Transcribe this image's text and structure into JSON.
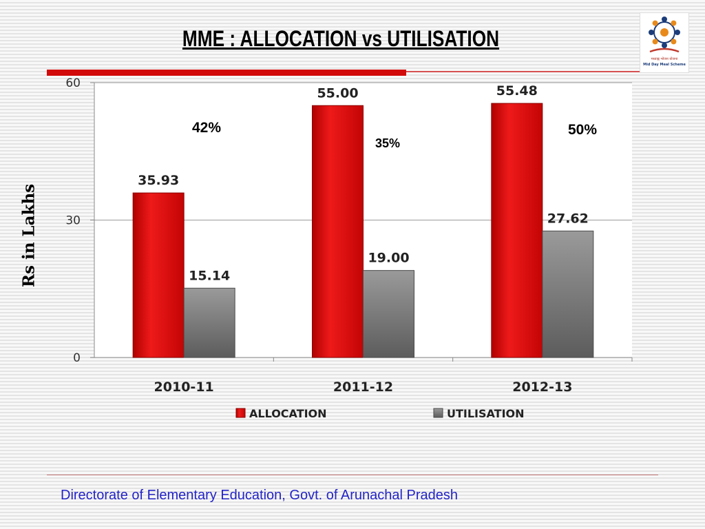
{
  "slide": {
    "title": "MME : ALLOCATION vs UTILISATION",
    "footer": "Directorate of Elementary Education, Govt. of Arunachal Pradesh",
    "logo": {
      "icon": "mid-day-meal-logo",
      "caption_hindi": "मध्याह्न भोजन योजना",
      "caption_english": "Mid Day Meal Scheme"
    }
  },
  "chart_data": {
    "type": "bar",
    "title": "MME : ALLOCATION vs UTILISATION",
    "ylabel": "Rs in Lakhs",
    "xlabel": "",
    "ylim": [
      0,
      60
    ],
    "yticks": [
      0,
      30,
      60
    ],
    "categories": [
      "2010-11",
      "2011-12",
      "2012-13"
    ],
    "series": [
      {
        "name": "ALLOCATION",
        "values": [
          35.93,
          55.0,
          55.48
        ],
        "labels": [
          "35.93",
          "55.00",
          "55.48"
        ],
        "color": "#dd0a0a"
      },
      {
        "name": "UTILISATION",
        "values": [
          15.14,
          19.0,
          27.62
        ],
        "labels": [
          "15.14",
          "19.00",
          "27.62"
        ],
        "color": "#808080"
      }
    ],
    "annotations": [
      "42%",
      "35%",
      "50%"
    ],
    "grid": true,
    "legend": "bottom"
  }
}
